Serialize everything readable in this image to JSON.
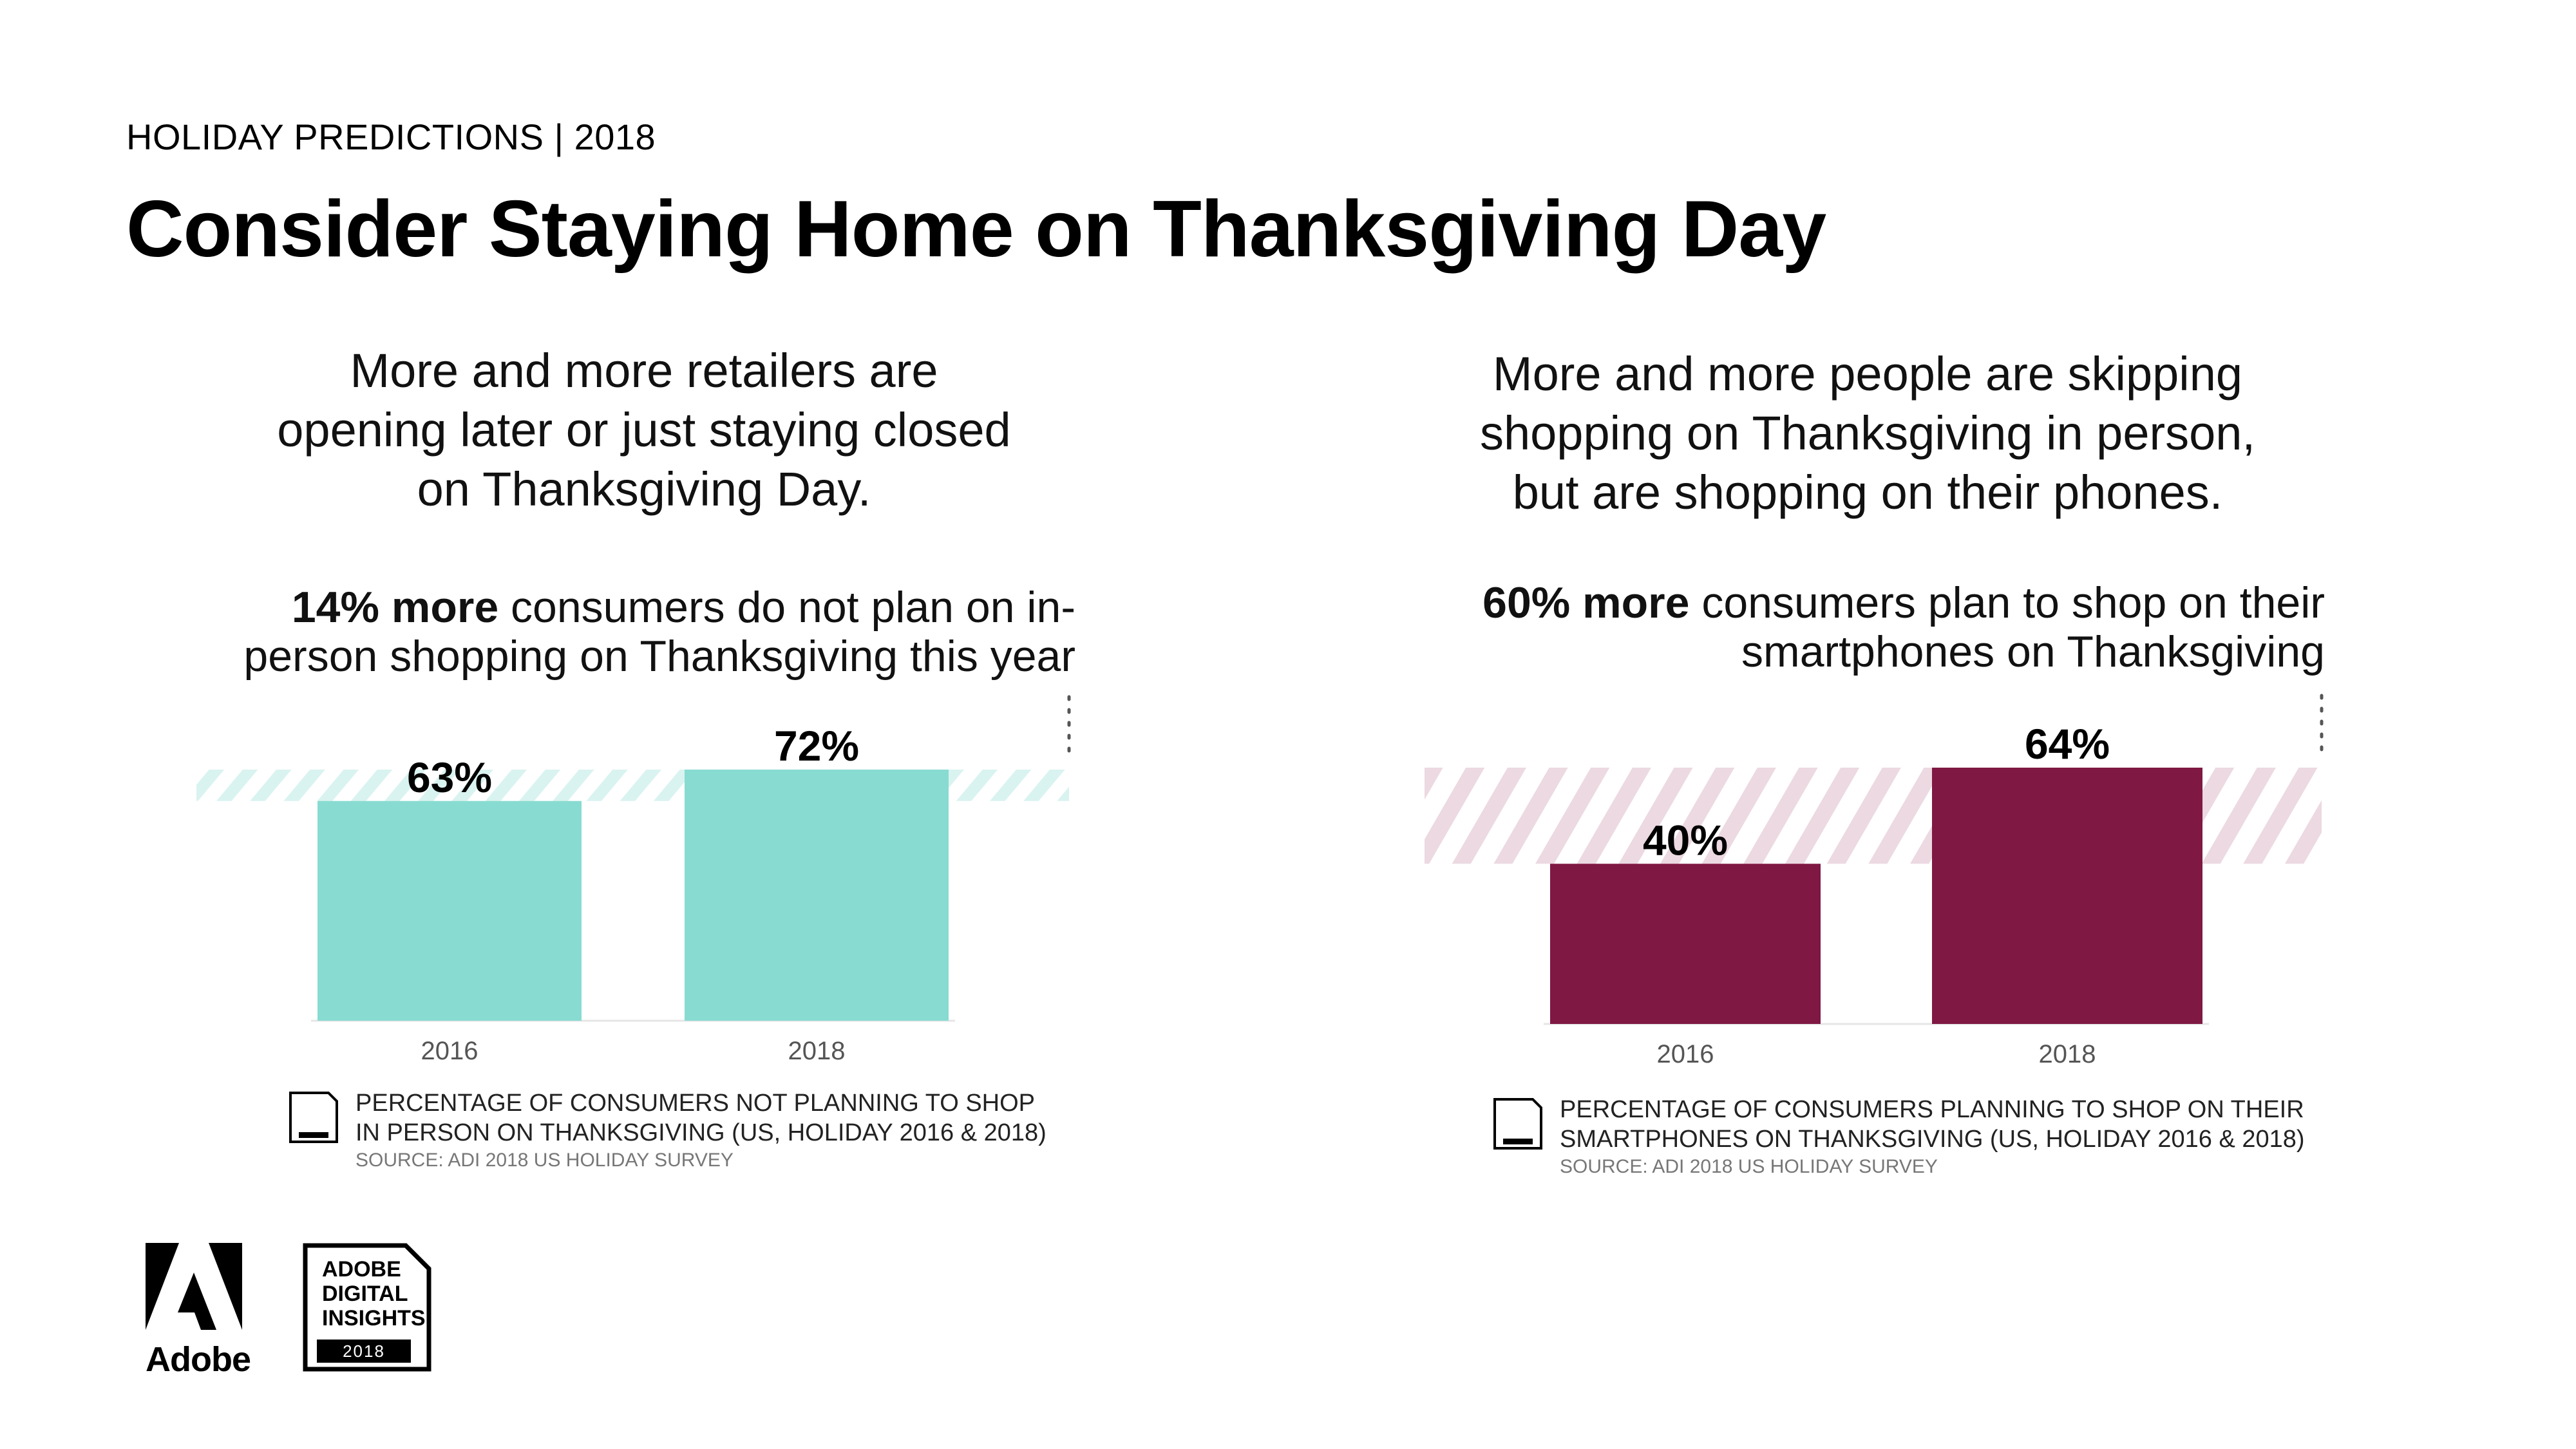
{
  "header": {
    "eyebrow": "HOLIDAY PREDICTIONS | 2018",
    "title": "Consider Staying Home on Thanksgiving Day"
  },
  "left_panel": {
    "subtitle": "More and more retailers are opening later or just staying closed on Thanksgiving Day.",
    "callout_bold": "14% more",
    "callout_rest": " consumers do not plan on in-person shopping on Thanksgiving this year",
    "note_line1": "PERCENTAGE OF CONSUMERS NOT PLANNING TO SHOP",
    "note_line2": "IN PERSON ON THANKSGIVING (US, HOLIDAY 2016 & 2018)",
    "source": "SOURCE: ADI 2018 US HOLIDAY SURVEY"
  },
  "right_panel": {
    "subtitle": "More and more people are skipping shopping on Thanksgiving in person, but are shopping on their phones.",
    "callout_bold": "60% more",
    "callout_rest": " consumers plan to shop on their smartphones on Thanksgiving",
    "note_line1": "PERCENTAGE OF CONSUMERS PLANNING TO SHOP ON THEIR",
    "note_line2": "SMARTPHONES ON THANKSGIVING (US, HOLIDAY 2016 & 2018)",
    "source": "SOURCE: ADI 2018 US HOLIDAY SURVEY"
  },
  "chart_data": [
    {
      "type": "bar",
      "categories": [
        "2016",
        "2018"
      ],
      "values": [
        63,
        72
      ],
      "labels": [
        "63%",
        "72%"
      ],
      "color": "#88dbd1",
      "hatch_color": "#d9f3f0",
      "ylim": [
        0,
        72
      ]
    },
    {
      "type": "bar",
      "categories": [
        "2016",
        "2018"
      ],
      "values": [
        40,
        64
      ],
      "labels": [
        "40%",
        "64%"
      ],
      "color": "#7f1843",
      "hatch_color": "#ecd9e1",
      "ylim": [
        0,
        64
      ]
    }
  ],
  "logos": {
    "adobe_word": "Adobe",
    "adi_line1": "ADOBE",
    "adi_line2": "DIGITAL",
    "adi_line3": "INSIGHTS",
    "adi_year": "2018",
    "badge_small_text": "ADOBE DIGITAL INSIGHTS"
  }
}
